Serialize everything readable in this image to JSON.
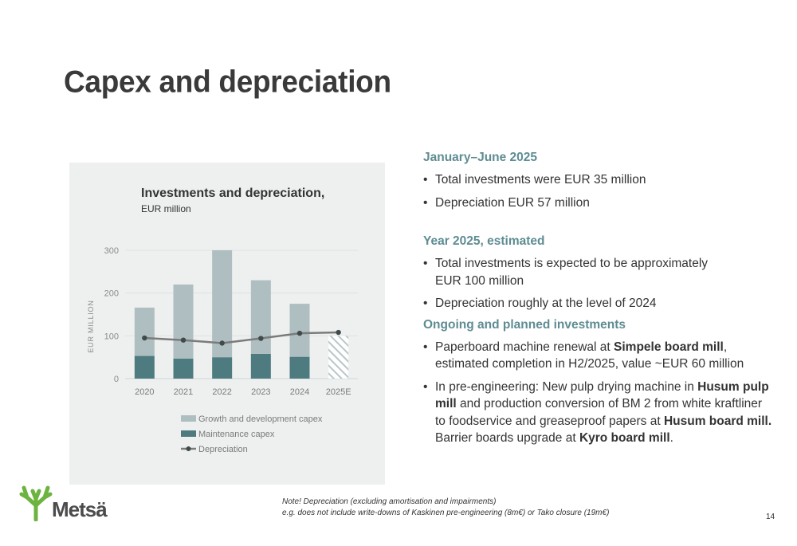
{
  "page_title": "Capex and depreciation",
  "chart_data": {
    "type": "bar",
    "title": "Investments and depreciation,",
    "subtitle": "EUR million",
    "ylabel": "EUR MILLION",
    "xlabel": "",
    "ylim": [
      0,
      300
    ],
    "yticks": [
      "0",
      "100",
      "200",
      "300"
    ],
    "grid": true,
    "stacked": true,
    "categories": [
      "2020",
      "2021",
      "2022",
      "2023",
      "2024",
      "2025E"
    ],
    "series": [
      {
        "name": "Growth and development capex",
        "kind": "bar",
        "values": [
          113,
          173,
          250,
          172,
          124,
          null
        ]
      },
      {
        "name": "Maintenance capex",
        "kind": "bar",
        "values": [
          53,
          47,
          50,
          58,
          51,
          null
        ]
      },
      {
        "name": "Depreciation",
        "kind": "line",
        "values": [
          95,
          90,
          83,
          94,
          106,
          108
        ]
      }
    ],
    "estimate_bar": {
      "category": "2025E",
      "value": 100,
      "pattern": "hatched"
    },
    "legend_position": "bottom",
    "colors": {
      "growth": "#aebec1",
      "maintenance": "#4e7b7f",
      "depreciation": "#7b7b7b",
      "estimate_hatch": "#b9c6c8"
    }
  },
  "right": {
    "section1": {
      "heading": "January–June 2025",
      "bullets": [
        "Total investments were EUR 35 million",
        "Depreciation EUR 57 million"
      ]
    },
    "section2": {
      "heading": "Year 2025, estimated",
      "bullet1_line1": "Total investments is expected to be approximately",
      "bullet1_line2": "EUR 100 million",
      "bullet2": "Depreciation roughly at the level of 2024"
    },
    "section3": {
      "heading": "Ongoing and planned investments",
      "b1_pre": "Paperboard machine renewal at ",
      "b1_bold": "Simpele board mill",
      "b1_post": ",",
      "b1_line2": "estimated completion in H2/2025, value ~EUR 60 million",
      "b2_pre": "In pre-engineering: New pulp drying machine in ",
      "b2_bold1": "Husum pulp mill",
      "b2_mid": " and production conversion of BM 2 from white kraftliner to foodservice and greaseproof papers at ",
      "b2_bold2": "Husum board mill.",
      "b2_line_pre": "Barrier boards upgrade at ",
      "b2_bold3": "Kyro board mill",
      "b2_end": "."
    }
  },
  "note": {
    "line1": "Note! Depreciation (excluding amortisation and impairments)",
    "line2": "e.g. does not include write-downs of Kaskinen pre-engineering (8m€) or Tako closure (19m€)"
  },
  "page_number": "14",
  "logo": {
    "text": "Metsä",
    "icon": "metsa-antler-icon",
    "color": "#6cb33f"
  }
}
